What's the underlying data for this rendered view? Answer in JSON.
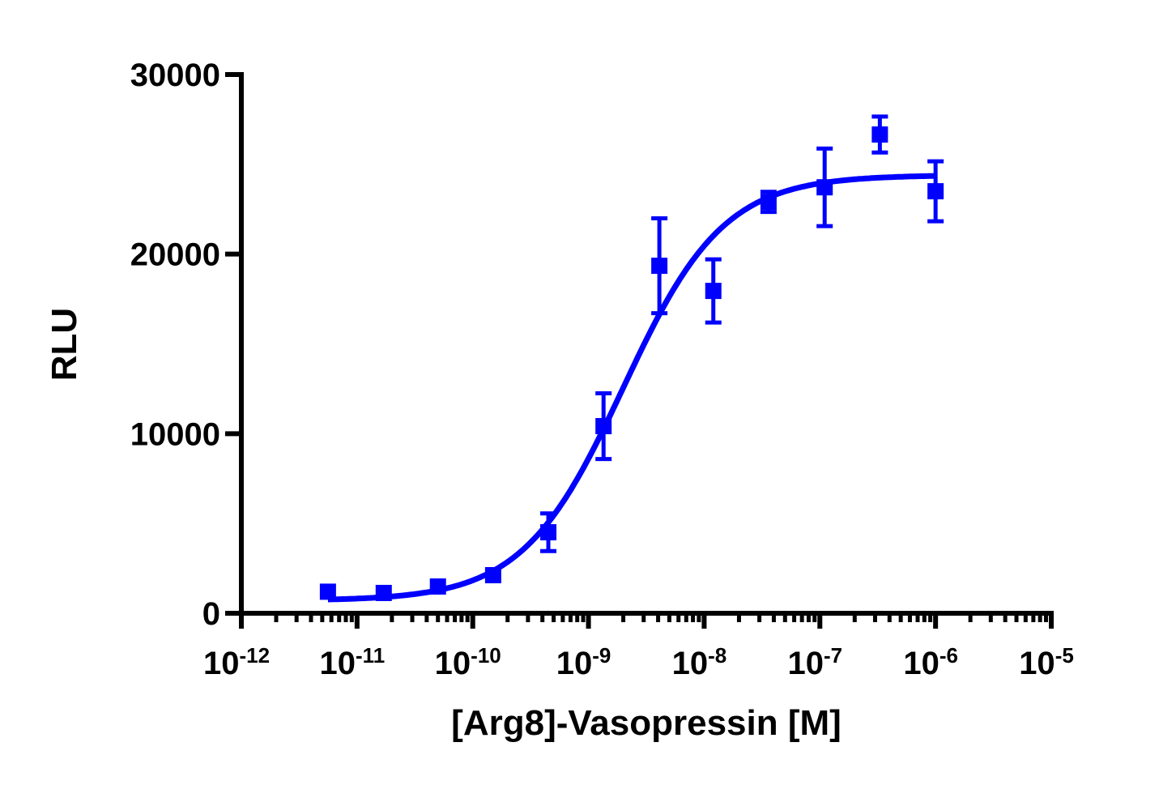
{
  "chart_data": {
    "type": "scatter",
    "title": "",
    "xlabel": "[Arg8]-Vasopressin [M]",
    "ylabel": "RLU",
    "x_scale": "log",
    "xlim": [
      1e-12,
      1e-05
    ],
    "ylim": [
      0,
      30000
    ],
    "grid": false,
    "legend": "none",
    "x_ticks": [
      {
        "base": "10",
        "exp": "-12"
      },
      {
        "base": "10",
        "exp": "-11"
      },
      {
        "base": "10",
        "exp": "-10"
      },
      {
        "base": "10",
        "exp": "-9"
      },
      {
        "base": "10",
        "exp": "-8"
      },
      {
        "base": "10",
        "exp": "-7"
      },
      {
        "base": "10",
        "exp": "-6"
      },
      {
        "base": "10",
        "exp": "-5"
      }
    ],
    "y_ticks": [
      "0",
      "10000",
      "20000",
      "30000"
    ],
    "color": "#0000ff",
    "series": [
      {
        "marker": "square",
        "x": [
          5.6e-12,
          1.7e-11,
          5e-11,
          1.5e-10,
          4.5e-10,
          1.35e-09,
          4.1e-09,
          1.2e-08,
          3.6e-08,
          1.1e-07,
          3.3e-07,
          1e-06
        ],
        "y": [
          1200,
          1130,
          1490,
          2120,
          4510,
          10420,
          19350,
          17950,
          22910,
          23720,
          26660,
          23500
        ],
        "error": [
          0,
          0,
          0,
          0,
          1050,
          1830,
          2640,
          1760,
          560,
          2160,
          1000,
          1670
        ]
      }
    ],
    "fit": {
      "model": "sigmoidal dose-response",
      "bottom": 700,
      "top": 24400,
      "logEC50": -8.7,
      "hill": 1.0,
      "x_range": [
        5.6e-12,
        1e-06
      ]
    }
  }
}
